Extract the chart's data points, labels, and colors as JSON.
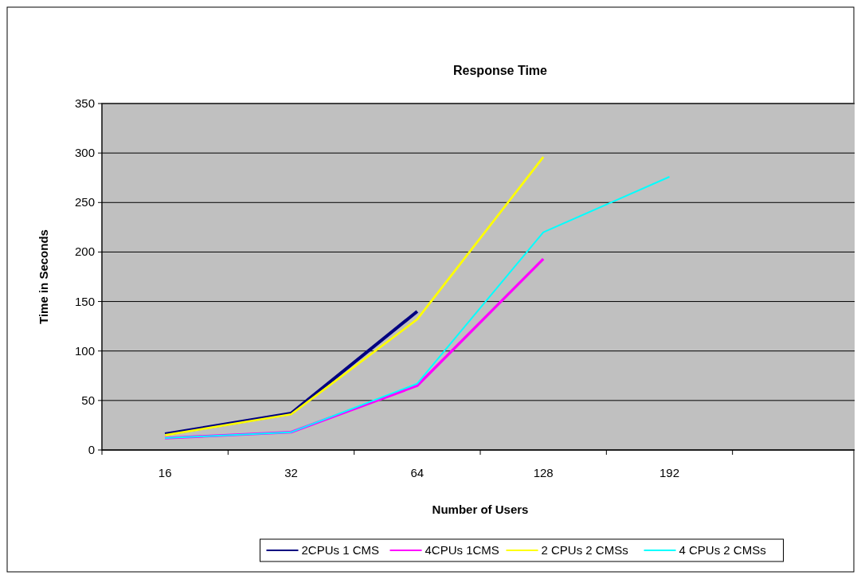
{
  "chart_data": {
    "type": "line",
    "title": "Response Time",
    "xlabel": "Number of Users",
    "ylabel": "Time in Seconds",
    "categories": [
      "16",
      "32",
      "64",
      "128",
      "192",
      null
    ],
    "series": [
      {
        "name": "2CPUs 1 CMS",
        "color": "#000080",
        "values": [
          16,
          37,
          140,
          null,
          null,
          null
        ]
      },
      {
        "name": "4CPUs 1CMS",
        "color": "#ff00ff",
        "values": [
          12,
          18,
          65,
          193,
          null,
          null
        ]
      },
      {
        "name": "2 CPUs 2 CMSs",
        "color": "#ffff00",
        "values": [
          15,
          36,
          132,
          296,
          null,
          null
        ]
      },
      {
        "name": "4 CPUs 2 CMSs",
        "color": "#00ffff",
        "values": [
          12,
          18,
          67,
          220,
          276,
          null
        ]
      }
    ],
    "ylim": [
      0,
      350
    ],
    "yticks": [
      0,
      50,
      100,
      150,
      200,
      250,
      300,
      350
    ],
    "grid": "y",
    "legend": "bottom",
    "marker": "none",
    "line_style": "solid"
  }
}
